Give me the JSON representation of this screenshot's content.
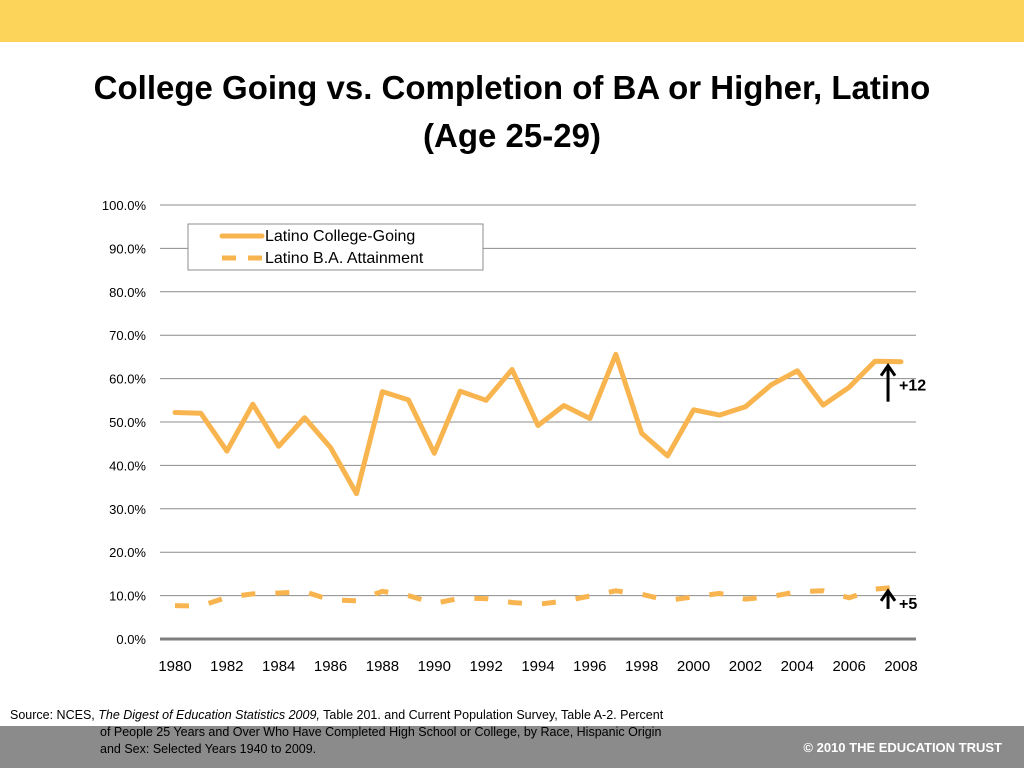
{
  "title_line1": "College Going vs. Completion of BA or Higher, Latino",
  "title_line2": "(Age 25-29)",
  "source": {
    "prefix": "Source: NCES, ",
    "italic": "The Digest of Education Statistics 2009,",
    "suffix": " Table 201. and Current Population Survey, Table A-2. Percent",
    "line2": "of People 25 Years and Over Who Have Completed High School or College, by Race, Hispanic Origin",
    "line3": "and Sex: Selected Years 1940 to 2009."
  },
  "copyright": "© 2010 THE EDUCATION TRUST",
  "colors": {
    "series": "#f8b54f",
    "accent_band": "#fdd45a",
    "footer_band": "#8b8b8b",
    "arrow": "#000000"
  },
  "chart_data": {
    "type": "line",
    "title": "College Going vs. Completion of BA or Higher, Latino (Age 25-29)",
    "xlabel": "",
    "ylabel": "",
    "x": [
      1980,
      1981,
      1982,
      1983,
      1984,
      1985,
      1986,
      1987,
      1988,
      1989,
      1990,
      1991,
      1992,
      1993,
      1994,
      1995,
      1996,
      1997,
      1998,
      1999,
      2000,
      2001,
      2002,
      2003,
      2004,
      2005,
      2006,
      2007,
      2008
    ],
    "x_tick_labels": [
      "1980",
      "1982",
      "1984",
      "1986",
      "1988",
      "1990",
      "1992",
      "1994",
      "1996",
      "1998",
      "2000",
      "2002",
      "2004",
      "2006",
      "2008"
    ],
    "y_tick_labels": [
      "0.0%",
      "10.0%",
      "20.0%",
      "30.0%",
      "40.0%",
      "50.0%",
      "60.0%",
      "70.0%",
      "80.0%",
      "90.0%",
      "100.0%"
    ],
    "ylim": [
      0,
      100
    ],
    "grid": true,
    "legend_position": "top-left",
    "series": [
      {
        "name": "Latino College-Going",
        "style": "solid",
        "values": [
          52.2,
          52.0,
          43.3,
          54.1,
          44.4,
          51.0,
          44.1,
          33.5,
          57.0,
          55.1,
          42.8,
          57.1,
          55.0,
          62.1,
          49.2,
          53.8,
          50.8,
          65.6,
          47.4,
          42.2,
          52.8,
          51.6,
          53.5,
          58.6,
          61.8,
          53.9,
          58.0,
          64.0,
          63.9
        ]
      },
      {
        "name": "Latino B.A. Attainment",
        "style": "dashed",
        "values": [
          7.7,
          7.6,
          9.6,
          10.4,
          10.6,
          10.9,
          9.0,
          8.8,
          11.0,
          10.0,
          8.2,
          9.4,
          9.3,
          8.4,
          8.0,
          8.7,
          9.9,
          11.1,
          10.3,
          8.9,
          9.7,
          10.5,
          9.2,
          9.8,
          10.9,
          11.1,
          9.5,
          11.5,
          12.0
        ]
      }
    ],
    "annotations": [
      {
        "text": "+12",
        "series": "Latino College-Going",
        "x": 2007.5
      },
      {
        "text": "+5",
        "series": "Latino B.A. Attainment",
        "x": 2007.5
      }
    ]
  }
}
